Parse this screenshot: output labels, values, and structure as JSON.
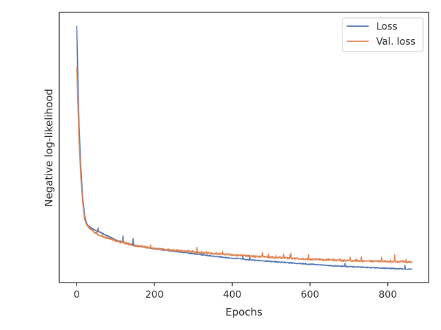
{
  "chart_data": {
    "type": "line",
    "xlabel": "Epochs",
    "ylabel": "Negative log-likelihood",
    "xlim": [
      -45,
      905
    ],
    "ylim": [
      0,
      100
    ],
    "x_ticks": [
      0,
      200,
      400,
      600,
      800
    ],
    "x_tick_labels": [
      "0",
      "200",
      "400",
      "600",
      "800"
    ],
    "y_ticks_shown": false,
    "grid": false,
    "legend_position": "top-right",
    "y_values_note": "y axis has no tick labels; values are relative (0 = bottom of axes, 100 = top)",
    "series": [
      {
        "name": "Loss",
        "color": "#4c72b0",
        "points": [
          [
            0,
            95
          ],
          [
            3,
            75
          ],
          [
            6,
            58
          ],
          [
            10,
            44
          ],
          [
            15,
            32
          ],
          [
            20,
            25
          ],
          [
            25,
            22
          ],
          [
            30,
            21
          ],
          [
            40,
            20
          ],
          [
            50,
            19.2
          ],
          [
            60,
            18.6
          ],
          [
            80,
            17.2
          ],
          [
            100,
            15.8
          ],
          [
            150,
            13.8
          ],
          [
            200,
            12.5
          ],
          [
            250,
            11.6
          ],
          [
            300,
            10.7
          ],
          [
            350,
            9.8
          ],
          [
            400,
            9.0
          ],
          [
            450,
            8.4
          ],
          [
            500,
            7.8
          ],
          [
            550,
            7.3
          ],
          [
            600,
            6.8
          ],
          [
            650,
            6.3
          ],
          [
            700,
            5.9
          ],
          [
            750,
            5.6
          ],
          [
            800,
            5.3
          ],
          [
            863,
            4.9
          ]
        ]
      },
      {
        "name": "Val. loss",
        "color": "#dd8452",
        "points": [
          [
            0,
            80
          ],
          [
            3,
            66
          ],
          [
            6,
            52
          ],
          [
            10,
            40
          ],
          [
            15,
            30
          ],
          [
            20,
            23.5
          ],
          [
            25,
            21.5
          ],
          [
            30,
            20.5
          ],
          [
            40,
            19.2
          ],
          [
            50,
            18.2
          ],
          [
            60,
            17.4
          ],
          [
            80,
            16.4
          ],
          [
            100,
            15.4
          ],
          [
            150,
            13.7
          ],
          [
            200,
            12.6
          ],
          [
            250,
            11.9
          ],
          [
            300,
            11.3
          ],
          [
            350,
            10.8
          ],
          [
            400,
            10.3
          ],
          [
            450,
            9.8
          ],
          [
            500,
            9.4
          ],
          [
            550,
            9.0
          ],
          [
            600,
            8.6
          ],
          [
            650,
            8.4
          ],
          [
            700,
            8.1
          ],
          [
            750,
            7.9
          ],
          [
            800,
            7.8
          ],
          [
            863,
            7.6
          ]
        ]
      }
    ]
  }
}
